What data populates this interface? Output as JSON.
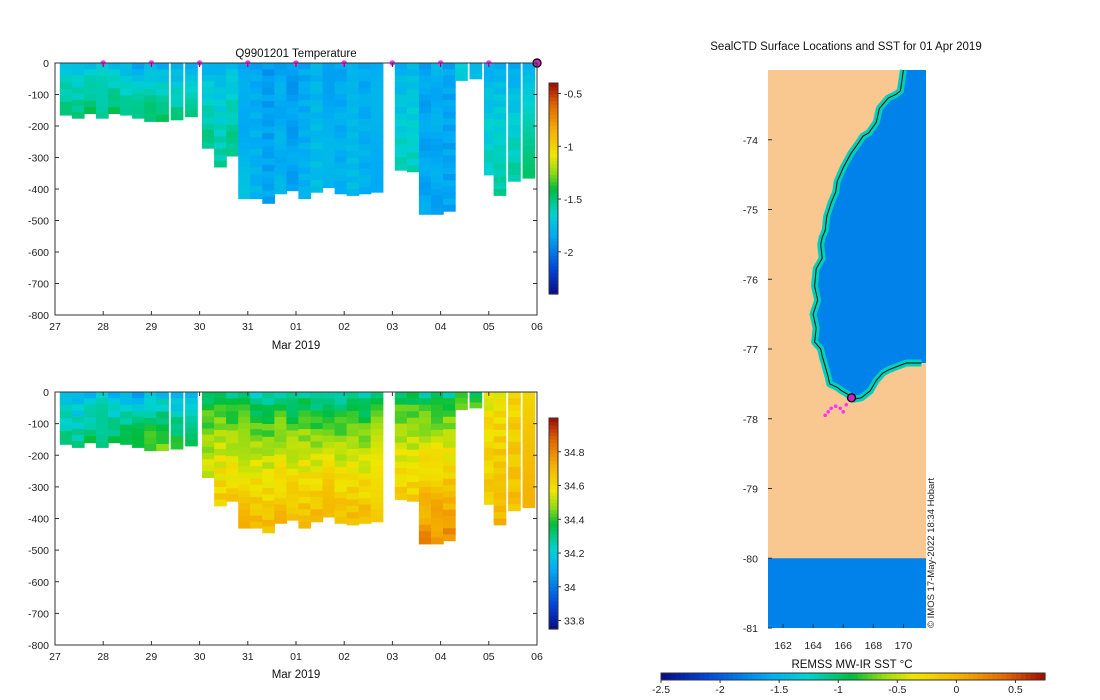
{
  "chart_data": [
    {
      "type": "heatmap",
      "title": "Q9901201  Temperature",
      "xlabel": "Mar 2019",
      "ylabel": "",
      "x_tick_labels": [
        "27",
        "28",
        "29",
        "30",
        "31",
        "01",
        "02",
        "03",
        "04",
        "05",
        "06"
      ],
      "x_tick_values": [
        27,
        28,
        29,
        30,
        31,
        32,
        33,
        34,
        35,
        36,
        37
      ],
      "xlim": [
        27,
        37
      ],
      "y_tick_values": [
        0,
        -100,
        -200,
        -300,
        -400,
        -500,
        -600,
        -700,
        -800
      ],
      "ylim": [
        -800,
        0
      ],
      "colorbar_ticks": [
        -0.5,
        -1,
        -1.5,
        -2
      ],
      "colorbar_tick_labels": [
        "-0.5",
        "-1",
        "-1.5",
        "-2"
      ],
      "colorbar_range": [
        -2.4,
        -0.4
      ],
      "profile_markers_x": [
        28,
        29,
        30,
        31,
        32,
        33,
        34,
        35,
        36
      ],
      "current_marker_x": 37,
      "profiles": [
        {
          "t": 27.1,
          "dep": 165,
          "s": -1.75,
          "d": -1.5
        },
        {
          "t": 27.35,
          "dep": 175,
          "s": -1.8,
          "d": -1.5
        },
        {
          "t": 27.6,
          "dep": 160,
          "s": -1.8,
          "d": -1.45
        },
        {
          "t": 27.85,
          "dep": 175,
          "s": -1.75,
          "d": -1.5
        },
        {
          "t": 28.1,
          "dep": 160,
          "s": -1.8,
          "d": -1.45
        },
        {
          "t": 28.35,
          "dep": 165,
          "s": -1.85,
          "d": -1.5
        },
        {
          "t": 28.6,
          "dep": 175,
          "s": -1.9,
          "d": -1.5
        },
        {
          "t": 28.85,
          "dep": 185,
          "s": -1.85,
          "d": -1.45
        },
        {
          "t": 29.1,
          "dep": 185,
          "s": -1.9,
          "d": -1.45
        },
        {
          "t": 29.4,
          "dep": 180,
          "s": -1.9,
          "d": -1.5
        },
        {
          "t": 29.7,
          "dep": 170,
          "s": -1.9,
          "d": -1.45
        },
        {
          "t": 30.05,
          "dep": 270,
          "s": -1.85,
          "d": -1.5
        },
        {
          "t": 30.3,
          "dep": 330,
          "s": -1.85,
          "d": -1.55
        },
        {
          "t": 30.55,
          "dep": 295,
          "s": -1.8,
          "d": -1.5
        },
        {
          "t": 30.8,
          "dep": 430,
          "s": -1.9,
          "d": -1.75
        },
        {
          "t": 31.05,
          "dep": 430,
          "s": -1.85,
          "d": -1.8
        },
        {
          "t": 31.3,
          "dep": 445,
          "s": -1.9,
          "d": -1.85
        },
        {
          "t": 31.55,
          "dep": 415,
          "s": -1.85,
          "d": -1.8
        },
        {
          "t": 31.8,
          "dep": 405,
          "s": -1.9,
          "d": -1.85
        },
        {
          "t": 32.05,
          "dep": 430,
          "s": -1.85,
          "d": -1.8
        },
        {
          "t": 32.3,
          "dep": 410,
          "s": -1.8,
          "d": -1.75
        },
        {
          "t": 32.55,
          "dep": 395,
          "s": -1.85,
          "d": -1.8
        },
        {
          "t": 32.8,
          "dep": 415,
          "s": -1.85,
          "d": -1.8
        },
        {
          "t": 33.05,
          "dep": 420,
          "s": -1.8,
          "d": -1.75
        },
        {
          "t": 33.3,
          "dep": 415,
          "s": -1.85,
          "d": -1.8
        },
        {
          "t": 33.55,
          "dep": 410,
          "s": -1.85,
          "d": -1.8
        },
        {
          "t": 34.05,
          "dep": 340,
          "s": -1.85,
          "d": -1.6
        },
        {
          "t": 34.3,
          "dep": 345,
          "s": -1.8,
          "d": -1.6
        },
        {
          "t": 34.55,
          "dep": 480,
          "s": -1.85,
          "d": -1.85
        },
        {
          "t": 34.8,
          "dep": 480,
          "s": -1.8,
          "d": -1.85
        },
        {
          "t": 35.05,
          "dep": 470,
          "s": -1.85,
          "d": -1.85
        },
        {
          "t": 35.3,
          "dep": 55,
          "s": -1.7,
          "d": -1.65
        },
        {
          "t": 35.6,
          "dep": 50,
          "s": -1.75,
          "d": -1.7
        },
        {
          "t": 35.9,
          "dep": 355,
          "s": -1.85,
          "d": -1.6
        },
        {
          "t": 36.1,
          "dep": 420,
          "s": -1.85,
          "d": -1.55
        },
        {
          "t": 36.4,
          "dep": 375,
          "s": -1.9,
          "d": -1.55
        },
        {
          "t": 36.7,
          "dep": 365,
          "s": -1.85,
          "d": -1.5
        }
      ]
    },
    {
      "type": "heatmap",
      "title": "",
      "xlabel": "Mar 2019",
      "ylabel": "",
      "x_tick_labels": [
        "27",
        "28",
        "29",
        "30",
        "31",
        "01",
        "02",
        "03",
        "04",
        "05",
        "06"
      ],
      "x_tick_values": [
        27,
        28,
        29,
        30,
        31,
        32,
        33,
        34,
        35,
        36,
        37
      ],
      "xlim": [
        27,
        37
      ],
      "y_tick_values": [
        0,
        -100,
        -200,
        -300,
        -400,
        -500,
        -600,
        -700,
        -800
      ],
      "ylim": [
        -800,
        0
      ],
      "colorbar_ticks": [
        34.8,
        34.6,
        34.4,
        34.2,
        34,
        33.8
      ],
      "colorbar_tick_labels": [
        "34.8",
        "34.6",
        "34.4",
        "34.2",
        "34",
        "33.8"
      ],
      "colorbar_range": [
        33.75,
        35.0
      ],
      "profiles": [
        {
          "t": 27.1,
          "dep": 165,
          "s": 34.15,
          "d": 34.3
        },
        {
          "t": 27.35,
          "dep": 175,
          "s": 34.1,
          "d": 34.3
        },
        {
          "t": 27.6,
          "dep": 160,
          "s": 34.1,
          "d": 34.35
        },
        {
          "t": 27.85,
          "dep": 175,
          "s": 34.15,
          "d": 34.35
        },
        {
          "t": 28.1,
          "dep": 160,
          "s": 34.1,
          "d": 34.35
        },
        {
          "t": 28.35,
          "dep": 165,
          "s": 34.05,
          "d": 34.4
        },
        {
          "t": 28.6,
          "dep": 175,
          "s": 34.05,
          "d": 34.4
        },
        {
          "t": 28.85,
          "dep": 185,
          "s": 34.1,
          "d": 34.45
        },
        {
          "t": 29.1,
          "dep": 185,
          "s": 34.1,
          "d": 34.45
        },
        {
          "t": 29.4,
          "dep": 180,
          "s": 34.05,
          "d": 34.4
        },
        {
          "t": 29.7,
          "dep": 170,
          "s": 34.1,
          "d": 34.4
        },
        {
          "t": 30.05,
          "dep": 270,
          "s": 34.3,
          "d": 34.55
        },
        {
          "t": 30.3,
          "dep": 360,
          "s": 34.3,
          "d": 34.65
        },
        {
          "t": 30.55,
          "dep": 345,
          "s": 34.25,
          "d": 34.65
        },
        {
          "t": 30.8,
          "dep": 430,
          "s": 34.25,
          "d": 34.7
        },
        {
          "t": 31.05,
          "dep": 430,
          "s": 34.2,
          "d": 34.7
        },
        {
          "t": 31.3,
          "dep": 445,
          "s": 34.2,
          "d": 34.7
        },
        {
          "t": 31.55,
          "dep": 415,
          "s": 34.25,
          "d": 34.7
        },
        {
          "t": 31.8,
          "dep": 405,
          "s": 34.2,
          "d": 34.7
        },
        {
          "t": 32.05,
          "dep": 430,
          "s": 34.25,
          "d": 34.7
        },
        {
          "t": 32.3,
          "dep": 410,
          "s": 34.2,
          "d": 34.7
        },
        {
          "t": 32.55,
          "dep": 395,
          "s": 34.25,
          "d": 34.7
        },
        {
          "t": 32.8,
          "dep": 415,
          "s": 34.2,
          "d": 34.7
        },
        {
          "t": 33.05,
          "dep": 420,
          "s": 34.25,
          "d": 34.7
        },
        {
          "t": 33.3,
          "dep": 415,
          "s": 34.2,
          "d": 34.7
        },
        {
          "t": 33.55,
          "dep": 410,
          "s": 34.25,
          "d": 34.7
        },
        {
          "t": 34.05,
          "dep": 340,
          "s": 34.3,
          "d": 34.65
        },
        {
          "t": 34.3,
          "dep": 345,
          "s": 34.3,
          "d": 34.65
        },
        {
          "t": 34.55,
          "dep": 480,
          "s": 34.25,
          "d": 34.8
        },
        {
          "t": 34.8,
          "dep": 480,
          "s": 34.25,
          "d": 34.8
        },
        {
          "t": 35.05,
          "dep": 470,
          "s": 34.25,
          "d": 34.8
        },
        {
          "t": 35.3,
          "dep": 55,
          "s": 34.3,
          "d": 34.5
        },
        {
          "t": 35.6,
          "dep": 50,
          "s": 34.3,
          "d": 34.5
        },
        {
          "t": 35.9,
          "dep": 355,
          "s": 34.55,
          "d": 34.65
        },
        {
          "t": 36.1,
          "dep": 420,
          "s": 34.55,
          "d": 34.7
        },
        {
          "t": 36.4,
          "dep": 375,
          "s": 34.6,
          "d": 34.68
        },
        {
          "t": 36.7,
          "dep": 365,
          "s": 34.6,
          "d": 34.68
        }
      ]
    },
    {
      "type": "heatmap",
      "title": "SealCTD Surface Locations and SST for 01 Apr 2019",
      "xlabel": "",
      "ylabel": "",
      "x_tick_labels": [
        "162",
        "164",
        "166",
        "168",
        "170"
      ],
      "x_tick_values": [
        162,
        164,
        166,
        168,
        170
      ],
      "xlim": [
        161,
        171.5
      ],
      "y_tick_labels": [
        "-74",
        "-75",
        "-76",
        "-77",
        "-78",
        "-79",
        "-80",
        "-81"
      ],
      "y_tick_values": [
        -74,
        -75,
        -76,
        -77,
        -78,
        -79,
        -80,
        -81
      ],
      "ylim": [
        -81,
        -73
      ],
      "colorbar_label": "REMSS MW-IR SST °C",
      "colorbar_ticks": [
        -2.5,
        -2,
        -1.5,
        -1,
        -0.5,
        0,
        0.5
      ],
      "colorbar_tick_labels": [
        "-2.5",
        "-2",
        "-1.5",
        "-1",
        "-0.5",
        "0",
        "0.5"
      ],
      "colorbar_range": [
        -2.5,
        0.75
      ],
      "credit": "© IMOS 17-May-2022 18:34 Hobart",
      "sea_sst": -1.8,
      "coast_sst": -1.2,
      "land_color": "#f9c891",
      "coast_lon": [
        170.0,
        169.8,
        169.5,
        169.0,
        168.4,
        168.2,
        167.7,
        167.3,
        167.0,
        166.5,
        166.0,
        165.6,
        165.5,
        165.2,
        164.9,
        164.8,
        164.6,
        164.5,
        164.6,
        164.2,
        164.1,
        164.3,
        164.0,
        164.2,
        164.1,
        164.5,
        164.6,
        165.0,
        165.1,
        165.6,
        165.9,
        166.3,
        166.5,
        166.7,
        167.2,
        167.8,
        168.2,
        168.6,
        169.0,
        169.6,
        170.2,
        171.2
      ],
      "coast_lat": [
        -73.0,
        -73.3,
        -73.35,
        -73.4,
        -73.55,
        -73.75,
        -73.9,
        -73.95,
        -74.05,
        -74.2,
        -74.4,
        -74.6,
        -74.75,
        -74.9,
        -75.1,
        -75.3,
        -75.4,
        -75.5,
        -75.7,
        -75.85,
        -76.1,
        -76.3,
        -76.5,
        -76.7,
        -76.9,
        -77.0,
        -77.1,
        -77.4,
        -77.5,
        -77.55,
        -77.6,
        -77.65,
        -77.7,
        -77.72,
        -77.7,
        -77.6,
        -77.45,
        -77.35,
        -77.3,
        -77.25,
        -77.2,
        -77.2
      ],
      "track_lon": [
        164.8,
        165.0,
        165.2,
        165.5,
        165.8,
        166.0,
        166.2,
        166.5
      ],
      "track_lat": [
        -77.95,
        -77.9,
        -77.85,
        -77.82,
        -77.85,
        -77.9,
        -77.8,
        -77.7
      ],
      "current_position": {
        "lon": 166.55,
        "lat": -77.7
      }
    }
  ]
}
